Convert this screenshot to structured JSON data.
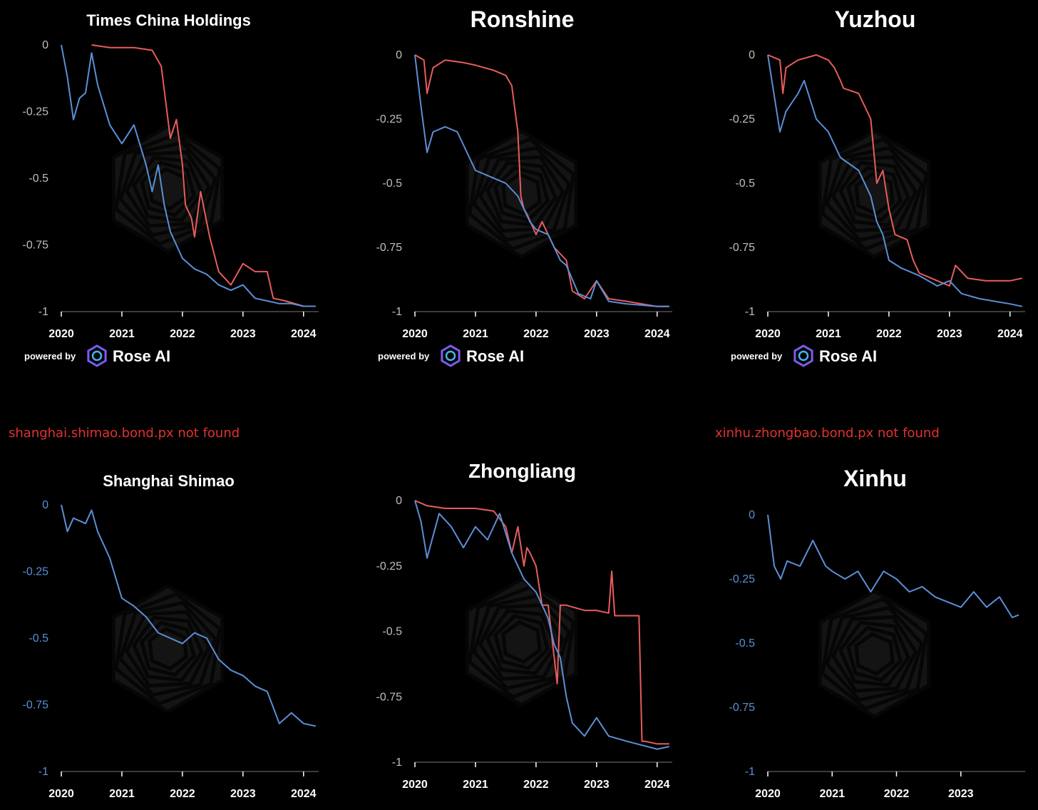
{
  "colors": {
    "background": "#000000",
    "red_series": "#e85c5c",
    "blue_series": "#5b8fd6",
    "axis_text_default": "#bfbfbf",
    "axis_text_blue": "#5b8fd6",
    "error_text": "#e0332f"
  },
  "branding": {
    "powered_by": "powered by",
    "brand_name": "Rose AI",
    "logo_icon": "rose-ai-hexagon-icon",
    "watermark_icon": "rose-ai-hexagon-watermark"
  },
  "errors": [
    "shanghai.shimao.bond.px not found",
    "xinhu.zhongbao.bond.px not found"
  ],
  "chart_data": [
    {
      "type": "line",
      "title": "Times China Holdings",
      "ylim": [
        -1,
        0
      ],
      "yticks": [
        "0",
        "-0.25",
        "-0.5",
        "-0.75",
        "-1"
      ],
      "xticks": [
        "2020",
        "2021",
        "2022",
        "2023",
        "2024"
      ],
      "series": [
        {
          "color": "red",
          "x": [
            2020.5,
            2020.8,
            2021.2,
            2021.5,
            2021.65,
            2021.8,
            2021.9,
            2022.0,
            2022.05,
            2022.15,
            2022.2,
            2022.3,
            2022.45,
            2022.6,
            2022.8,
            2023.0,
            2023.2,
            2023.4,
            2023.5,
            2023.7,
            2024.0,
            2024.2
          ],
          "y": [
            0,
            -0.01,
            -0.01,
            -0.02,
            -0.08,
            -0.35,
            -0.28,
            -0.45,
            -0.6,
            -0.65,
            -0.72,
            -0.55,
            -0.72,
            -0.85,
            -0.9,
            -0.82,
            -0.85,
            -0.85,
            -0.95,
            -0.96,
            -0.98,
            -0.98
          ]
        },
        {
          "color": "blue",
          "x": [
            2020.0,
            2020.1,
            2020.2,
            2020.3,
            2020.4,
            2020.5,
            2020.6,
            2020.8,
            2021.0,
            2021.2,
            2021.4,
            2021.5,
            2021.6,
            2021.7,
            2021.8,
            2021.9,
            2022.0,
            2022.2,
            2022.4,
            2022.6,
            2022.8,
            2023.0,
            2023.2,
            2023.4,
            2023.6,
            2023.8,
            2024.0,
            2024.2
          ],
          "y": [
            0,
            -0.12,
            -0.28,
            -0.2,
            -0.18,
            -0.03,
            -0.15,
            -0.3,
            -0.37,
            -0.3,
            -0.45,
            -0.55,
            -0.45,
            -0.6,
            -0.7,
            -0.75,
            -0.8,
            -0.84,
            -0.86,
            -0.9,
            -0.92,
            -0.9,
            -0.95,
            -0.96,
            -0.97,
            -0.97,
            -0.98,
            -0.98
          ]
        }
      ]
    },
    {
      "type": "line",
      "title": "Ronshine",
      "ylim": [
        -1,
        0
      ],
      "yticks": [
        "0",
        "-0.25",
        "-0.5",
        "-0.75",
        "-1"
      ],
      "xticks": [
        "2020",
        "2021",
        "2022",
        "2023",
        "2024"
      ],
      "series": [
        {
          "color": "red",
          "x": [
            2020.0,
            2020.15,
            2020.2,
            2020.3,
            2020.5,
            2020.8,
            2021.0,
            2021.3,
            2021.5,
            2021.6,
            2021.7,
            2021.75,
            2021.8,
            2021.85,
            2022.0,
            2022.1,
            2022.3,
            2022.5,
            2022.6,
            2022.8,
            2023.0,
            2023.2,
            2023.5,
            2024.0,
            2024.2
          ],
          "y": [
            0,
            -0.02,
            -0.15,
            -0.05,
            -0.02,
            -0.03,
            -0.04,
            -0.06,
            -0.08,
            -0.12,
            -0.3,
            -0.55,
            -0.6,
            -0.62,
            -0.7,
            -0.65,
            -0.75,
            -0.8,
            -0.92,
            -0.95,
            -0.88,
            -0.95,
            -0.96,
            -0.98,
            -0.98
          ]
        },
        {
          "color": "blue",
          "x": [
            2020.0,
            2020.1,
            2020.2,
            2020.3,
            2020.5,
            2020.7,
            2020.9,
            2021.0,
            2021.2,
            2021.5,
            2021.7,
            2021.8,
            2021.9,
            2022.0,
            2022.2,
            2022.4,
            2022.5,
            2022.7,
            2022.9,
            2023.0,
            2023.2,
            2023.5,
            2024.0,
            2024.2
          ],
          "y": [
            0,
            -0.2,
            -0.38,
            -0.3,
            -0.28,
            -0.3,
            -0.4,
            -0.45,
            -0.47,
            -0.5,
            -0.55,
            -0.6,
            -0.65,
            -0.68,
            -0.7,
            -0.8,
            -0.82,
            -0.93,
            -0.95,
            -0.88,
            -0.96,
            -0.97,
            -0.98,
            -0.98
          ]
        }
      ]
    },
    {
      "type": "line",
      "title": "Yuzhou",
      "ylim": [
        -1,
        0
      ],
      "yticks": [
        "0",
        "-0.25",
        "-0.5",
        "-0.75",
        "-1"
      ],
      "xticks": [
        "2020",
        "2021",
        "2022",
        "2023",
        "2024"
      ],
      "series": [
        {
          "color": "red",
          "x": [
            2020.0,
            2020.2,
            2020.25,
            2020.3,
            2020.5,
            2020.8,
            2021.0,
            2021.1,
            2021.2,
            2021.25,
            2021.5,
            2021.7,
            2021.8,
            2021.9,
            2022.0,
            2022.1,
            2022.3,
            2022.4,
            2022.5,
            2022.8,
            2023.0,
            2023.1,
            2023.3,
            2023.6,
            2024.0,
            2024.2
          ],
          "y": [
            0,
            -0.02,
            -0.15,
            -0.05,
            -0.02,
            0,
            -0.02,
            -0.05,
            -0.1,
            -0.13,
            -0.15,
            -0.25,
            -0.5,
            -0.45,
            -0.6,
            -0.7,
            -0.72,
            -0.8,
            -0.85,
            -0.88,
            -0.9,
            -0.82,
            -0.87,
            -0.88,
            -0.88,
            -0.87
          ]
        },
        {
          "color": "blue",
          "x": [
            2020.0,
            2020.1,
            2020.2,
            2020.3,
            2020.5,
            2020.6,
            2020.8,
            2021.0,
            2021.2,
            2021.5,
            2021.7,
            2021.8,
            2021.9,
            2022.0,
            2022.2,
            2022.5,
            2022.8,
            2023.0,
            2023.2,
            2023.5,
            2024.0,
            2024.2
          ],
          "y": [
            0,
            -0.15,
            -0.3,
            -0.22,
            -0.15,
            -0.1,
            -0.25,
            -0.3,
            -0.4,
            -0.45,
            -0.55,
            -0.65,
            -0.7,
            -0.8,
            -0.83,
            -0.86,
            -0.9,
            -0.88,
            -0.93,
            -0.95,
            -0.97,
            -0.98
          ]
        }
      ]
    },
    {
      "type": "line",
      "title": "Shanghai Shimao",
      "ylim": [
        -1,
        0
      ],
      "yticks": [
        "0",
        "-0.25",
        "-0.5",
        "-0.75",
        "-1"
      ],
      "xticks": [
        "2020",
        "2021",
        "2022",
        "2023",
        "2024"
      ],
      "series": [
        {
          "color": "blue",
          "x": [
            2020.0,
            2020.1,
            2020.2,
            2020.4,
            2020.5,
            2020.6,
            2020.8,
            2021.0,
            2021.2,
            2021.4,
            2021.6,
            2021.8,
            2022.0,
            2022.2,
            2022.4,
            2022.6,
            2022.8,
            2023.0,
            2023.2,
            2023.4,
            2023.6,
            2023.8,
            2024.0,
            2024.2
          ],
          "y": [
            0,
            -0.1,
            -0.05,
            -0.07,
            -0.02,
            -0.1,
            -0.2,
            -0.35,
            -0.38,
            -0.42,
            -0.48,
            -0.5,
            -0.52,
            -0.48,
            -0.5,
            -0.58,
            -0.62,
            -0.64,
            -0.68,
            -0.7,
            -0.82,
            -0.78,
            -0.82,
            -0.83
          ]
        }
      ]
    },
    {
      "type": "line",
      "title": "Zhongliang",
      "ylim": [
        -1,
        0
      ],
      "yticks": [
        "0",
        "-0.25",
        "-0.5",
        "-0.75",
        "-1"
      ],
      "xticks": [
        "2020",
        "2021",
        "2022",
        "2023",
        "2024"
      ],
      "series": [
        {
          "color": "red",
          "x": [
            2020.0,
            2020.2,
            2020.5,
            2021.0,
            2021.3,
            2021.5,
            2021.6,
            2021.7,
            2021.8,
            2021.85,
            2021.9,
            2022.0,
            2022.1,
            2022.2,
            2022.3,
            2022.35,
            2022.4,
            2022.5,
            2022.8,
            2023.0,
            2023.2,
            2023.25,
            2023.3,
            2023.5,
            2023.7,
            2023.75,
            2023.8,
            2024.0,
            2024.2
          ],
          "y": [
            0,
            -0.02,
            -0.03,
            -0.03,
            -0.04,
            -0.1,
            -0.2,
            -0.1,
            -0.25,
            -0.18,
            -0.2,
            -0.25,
            -0.4,
            -0.4,
            -0.6,
            -0.7,
            -0.4,
            -0.4,
            -0.42,
            -0.42,
            -0.43,
            -0.27,
            -0.44,
            -0.44,
            -0.44,
            -0.92,
            -0.92,
            -0.93,
            -0.93
          ]
        },
        {
          "color": "blue",
          "x": [
            2020.0,
            2020.1,
            2020.2,
            2020.4,
            2020.6,
            2020.8,
            2021.0,
            2021.2,
            2021.4,
            2021.6,
            2021.8,
            2022.0,
            2022.1,
            2022.2,
            2022.3,
            2022.4,
            2022.5,
            2022.6,
            2022.8,
            2023.0,
            2023.2,
            2023.5,
            2024.0,
            2024.2
          ],
          "y": [
            0,
            -0.08,
            -0.22,
            -0.05,
            -0.1,
            -0.18,
            -0.1,
            -0.15,
            -0.05,
            -0.2,
            -0.3,
            -0.35,
            -0.4,
            -0.45,
            -0.55,
            -0.6,
            -0.75,
            -0.85,
            -0.9,
            -0.83,
            -0.9,
            -0.92,
            -0.95,
            -0.94
          ]
        }
      ]
    },
    {
      "type": "line",
      "title": "Xinhu",
      "ylim": [
        -1,
        0
      ],
      "yticks": [
        "0",
        "-0.25",
        "-0.5",
        "-0.75",
        "-1"
      ],
      "xticks": [
        "2020",
        "2021",
        "2022",
        "2023"
      ],
      "series": [
        {
          "color": "blue",
          "x": [
            2020.0,
            2020.1,
            2020.2,
            2020.3,
            2020.5,
            2020.7,
            2020.9,
            2021.0,
            2021.2,
            2021.4,
            2021.6,
            2021.8,
            2022.0,
            2022.2,
            2022.4,
            2022.6,
            2022.8,
            2023.0,
            2023.2,
            2023.4,
            2023.6,
            2023.8,
            2023.9
          ],
          "y": [
            0,
            -0.2,
            -0.25,
            -0.18,
            -0.2,
            -0.1,
            -0.2,
            -0.22,
            -0.25,
            -0.22,
            -0.3,
            -0.22,
            -0.25,
            -0.3,
            -0.28,
            -0.32,
            -0.34,
            -0.36,
            -0.3,
            -0.36,
            -0.32,
            -0.4,
            -0.39
          ]
        }
      ]
    }
  ]
}
